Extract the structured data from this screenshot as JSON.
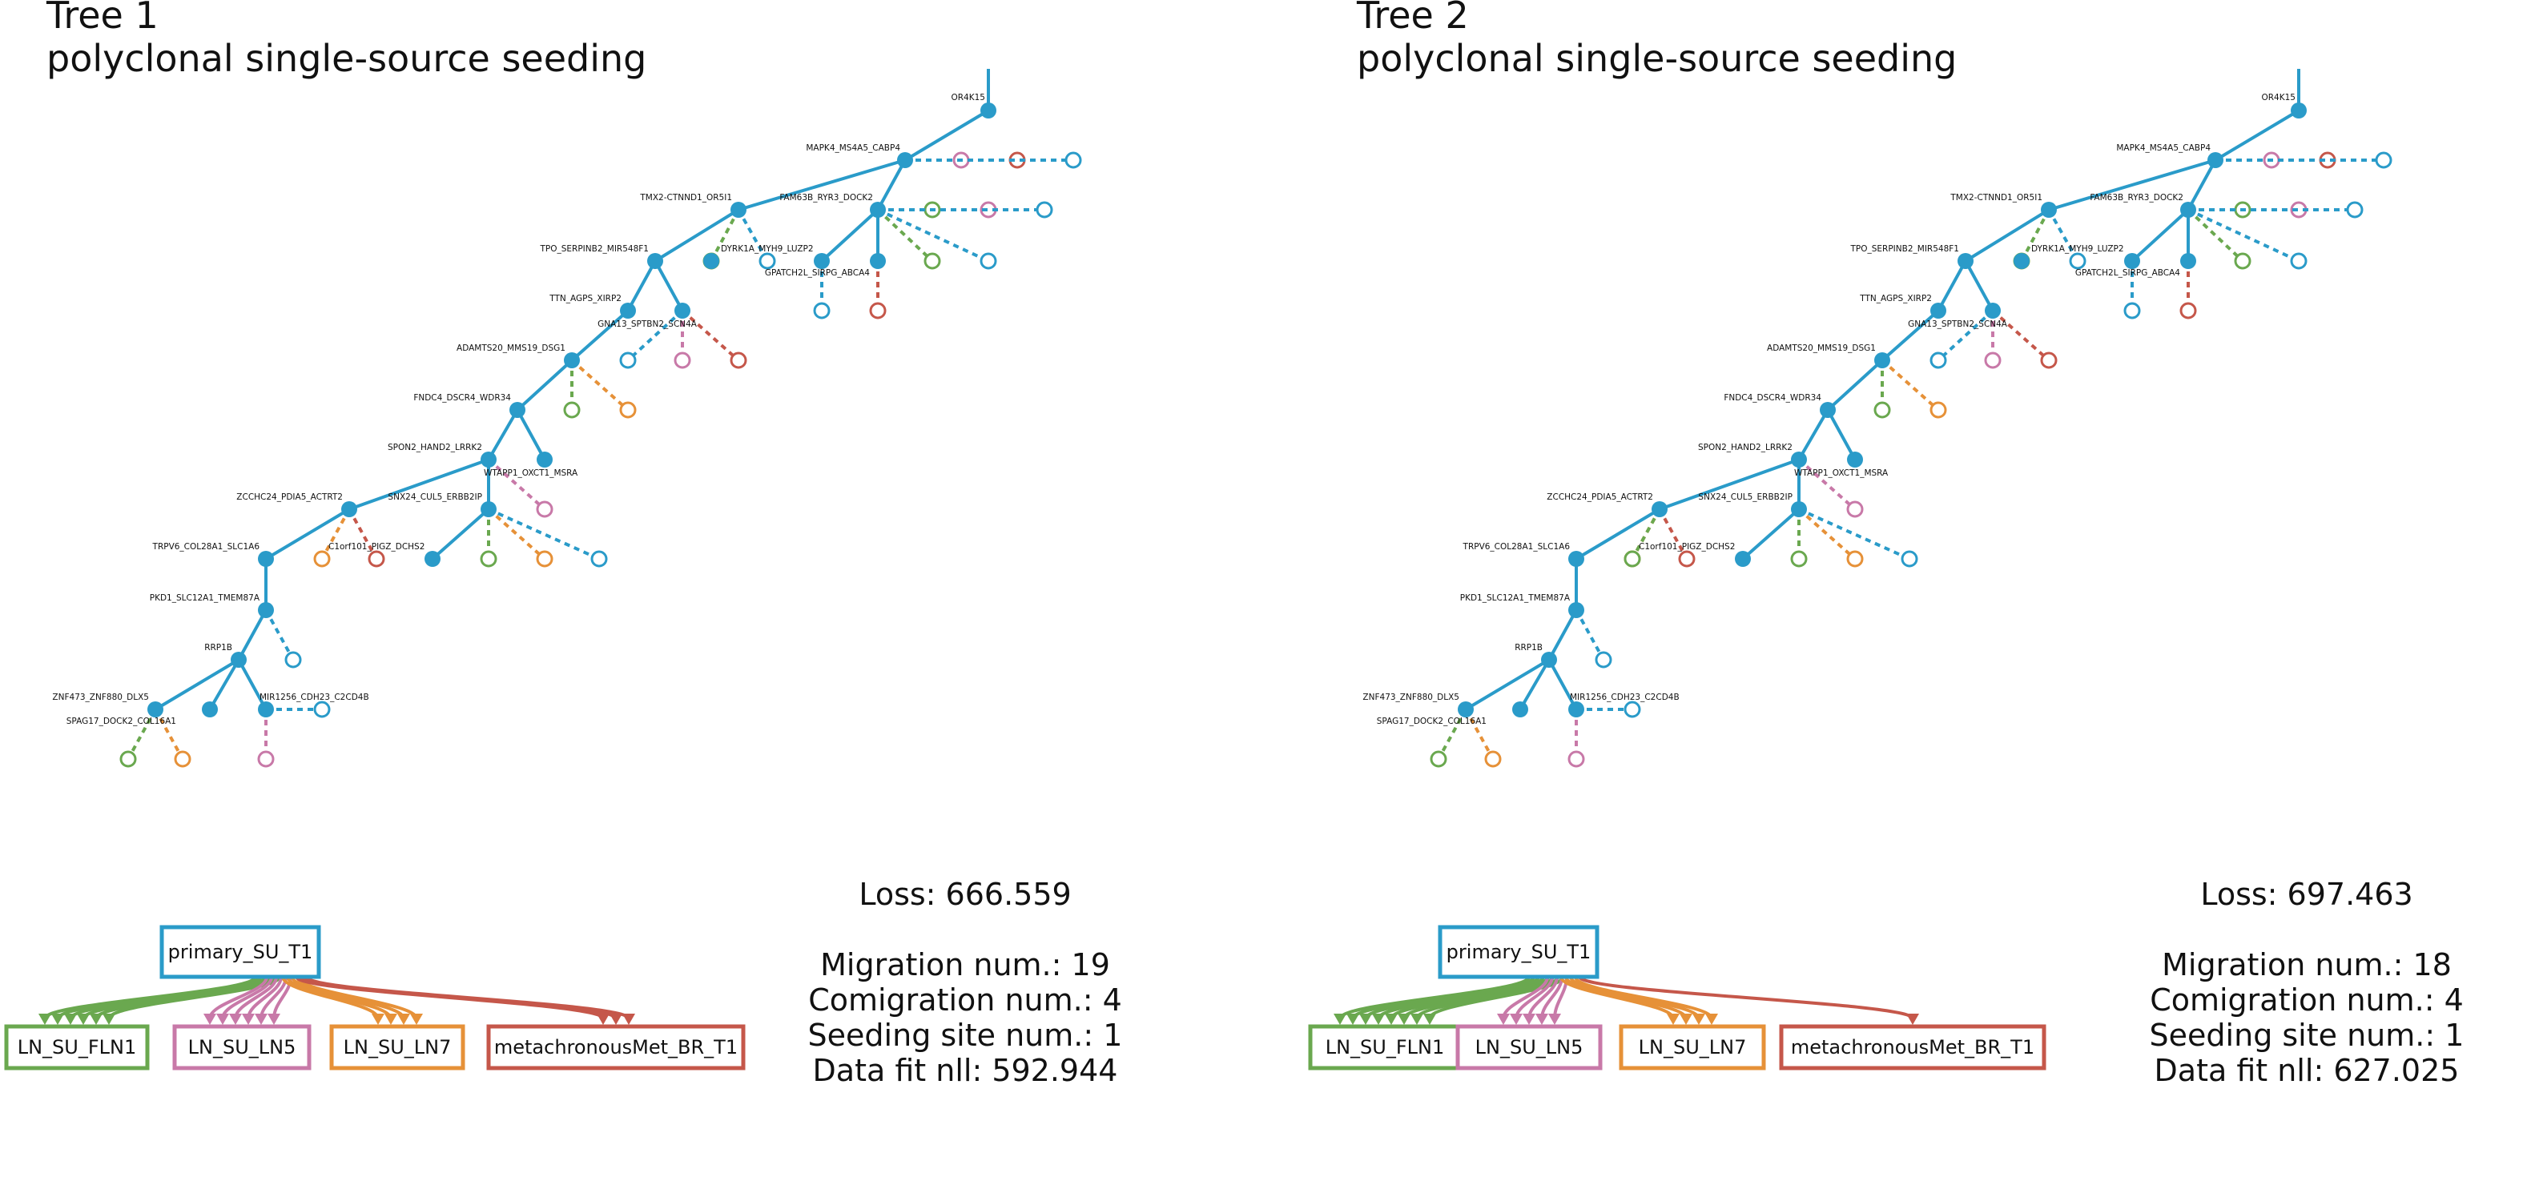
{
  "colors": {
    "tree": "#2a9bc9",
    "LN_SU_FLN1": "#6aa84f",
    "LN_SU_LN5": "#c879a8",
    "LN_SU_LN7": "#e69138",
    "metachronousMet_BR_T1": "#c5574a",
    "primary_SU_T1": "#2a9bc9"
  },
  "labels": {
    "n1": "OR4K15",
    "n2": "MAPK4_MS4A5_CABP4",
    "n3": "TMX2-CTNND1_OR5I1",
    "n4": "FAM63B_RYR3_DOCK2",
    "n5": "TPO_SERPINB2_MIR548F1",
    "n6": "DYRK1A_MYH9_LUZP2",
    "n7": "GPATCH2L_SIRPG_ABCA4",
    "n8": "TTN_AGPS_XIRP2",
    "n9": "GNA13_SPTBN2_SCN4A",
    "n10": "ADAMTS20_MMS19_DSG1",
    "n11": "FNDC4_DSCR4_WDR34",
    "n12": "SPON2_HAND2_LRRK2",
    "n13": "WTAPP1_OXCT1_MSRA",
    "n14": "ZCCHC24_PDIA5_ACTRT2",
    "n15": "SNX24_CUL5_ERBB2IP",
    "n16": "C1orf101_PIGZ_DCHS2",
    "n17": "TRPV6_COL28A1_SLC1A6",
    "n18": "PKD1_SLC12A1_TMEM87A",
    "n19": "RRP1B",
    "n20": "ZNF473_ZNF880_DLX5",
    "n21": "SPAG17_DOCK2_COL16A1",
    "n22": "MIR1256_CDH23_C2CD4B"
  },
  "sites": {
    "primary": "primary_SU_T1",
    "targets": [
      "LN_SU_FLN1",
      "LN_SU_LN5",
      "LN_SU_LN7",
      "metachronousMet_BR_T1"
    ]
  },
  "trees": [
    {
      "title": "Tree 1",
      "subtitle": "polyclonal single-source seeding",
      "loss": "Loss: 666.559",
      "migration": "Migration num.: 19",
      "comigration": "Comigration num.: 4",
      "seeding": "Seeding site num.: 1",
      "datafit": "Data fit nll: 592.944",
      "migration_counts": [
        6,
        6,
        4,
        3
      ]
    },
    {
      "title": "Tree 2",
      "subtitle": "polyclonal single-source seeding",
      "loss": "Loss: 697.463",
      "migration": "Migration num.: 18",
      "comigration": "Comigration num.: 4",
      "seeding": "Seeding site num.: 1",
      "datafit": "Data fit nll: 627.025",
      "migration_counts": [
        8,
        5,
        4,
        1
      ]
    }
  ]
}
